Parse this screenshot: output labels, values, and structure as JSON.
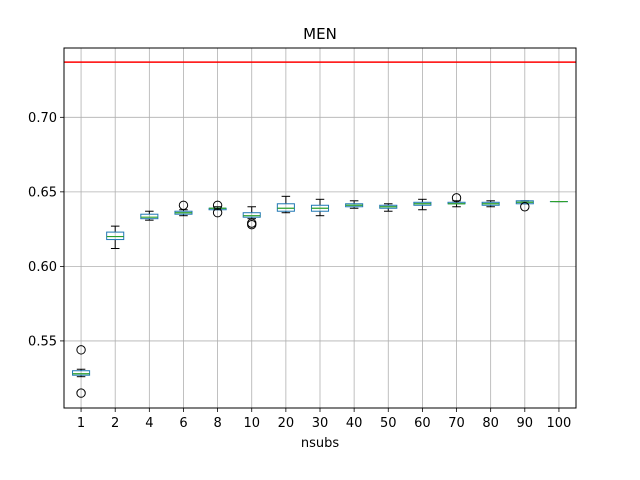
{
  "chart_data": {
    "type": "boxplot",
    "title": "MEN",
    "xlabel": "nsubs",
    "ylabel": "",
    "ylim": [
      0.505,
      0.7465
    ],
    "yticks": [
      "0.55",
      "0.60",
      "0.65",
      "0.70"
    ],
    "grid": true,
    "reference_line": {
      "y": 0.737,
      "color": "#ff0000"
    },
    "colors": {
      "box": "#1f77b4",
      "median": "#2ca02c",
      "whisker": "#000000",
      "flier": "#000000"
    },
    "categories": [
      "1",
      "2",
      "4",
      "6",
      "8",
      "10",
      "20",
      "30",
      "40",
      "50",
      "60",
      "70",
      "80",
      "90",
      "100"
    ],
    "boxes": [
      {
        "label": "1",
        "whislo": 0.526,
        "q1": 0.527,
        "med": 0.528,
        "q3": 0.53,
        "whishi": 0.531,
        "fliers": [
          0.544,
          0.515
        ]
      },
      {
        "label": "2",
        "whislo": 0.612,
        "q1": 0.618,
        "med": 0.62,
        "q3": 0.623,
        "whishi": 0.627,
        "fliers": []
      },
      {
        "label": "4",
        "whislo": 0.631,
        "q1": 0.632,
        "med": 0.633,
        "q3": 0.635,
        "whishi": 0.637,
        "fliers": []
      },
      {
        "label": "6",
        "whislo": 0.634,
        "q1": 0.635,
        "med": 0.636,
        "q3": 0.637,
        "whishi": 0.638,
        "fliers": [
          0.641
        ]
      },
      {
        "label": "8",
        "whislo": 0.638,
        "q1": 0.638,
        "med": 0.639,
        "q3": 0.639,
        "whishi": 0.64,
        "fliers": [
          0.641,
          0.636
        ]
      },
      {
        "label": "10",
        "whislo": 0.632,
        "q1": 0.633,
        "med": 0.634,
        "q3": 0.636,
        "whishi": 0.64,
        "fliers": [
          0.629,
          0.628
        ]
      },
      {
        "label": "20",
        "whislo": 0.636,
        "q1": 0.637,
        "med": 0.639,
        "q3": 0.642,
        "whishi": 0.647,
        "fliers": []
      },
      {
        "label": "30",
        "whislo": 0.634,
        "q1": 0.637,
        "med": 0.639,
        "q3": 0.641,
        "whishi": 0.645,
        "fliers": []
      },
      {
        "label": "40",
        "whislo": 0.639,
        "q1": 0.64,
        "med": 0.641,
        "q3": 0.642,
        "whishi": 0.644,
        "fliers": []
      },
      {
        "label": "50",
        "whislo": 0.637,
        "q1": 0.639,
        "med": 0.64,
        "q3": 0.641,
        "whishi": 0.642,
        "fliers": []
      },
      {
        "label": "60",
        "whislo": 0.638,
        "q1": 0.641,
        "med": 0.642,
        "q3": 0.643,
        "whishi": 0.645,
        "fliers": []
      },
      {
        "label": "70",
        "whislo": 0.64,
        "q1": 0.642,
        "med": 0.642,
        "q3": 0.643,
        "whishi": 0.644,
        "fliers": [
          0.646
        ]
      },
      {
        "label": "80",
        "whislo": 0.64,
        "q1": 0.641,
        "med": 0.642,
        "q3": 0.643,
        "whishi": 0.644,
        "fliers": []
      },
      {
        "label": "90",
        "whislo": 0.642,
        "q1": 0.642,
        "med": 0.643,
        "q3": 0.644,
        "whishi": 0.644,
        "fliers": [
          0.64
        ]
      },
      {
        "label": "100",
        "whislo": 0.6435,
        "q1": 0.6435,
        "med": 0.6435,
        "q3": 0.6435,
        "whishi": 0.6435,
        "fliers": []
      }
    ]
  }
}
